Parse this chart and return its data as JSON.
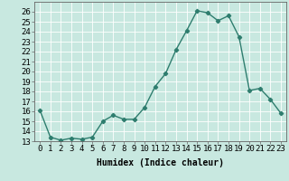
{
  "x": [
    0,
    1,
    2,
    3,
    4,
    5,
    6,
    7,
    8,
    9,
    10,
    11,
    12,
    13,
    14,
    15,
    16,
    17,
    18,
    19,
    20,
    21,
    22,
    23
  ],
  "y": [
    16.1,
    13.4,
    13.1,
    13.3,
    13.2,
    13.4,
    15.0,
    15.6,
    15.2,
    15.2,
    16.4,
    18.5,
    19.8,
    22.2,
    24.1,
    26.1,
    25.9,
    25.1,
    25.6,
    23.5,
    18.1,
    18.3,
    17.2,
    15.8
  ],
  "line_color": "#2e7d6e",
  "marker": "D",
  "marker_size": 2.2,
  "line_width": 1.0,
  "background_color": "#c8e8e0",
  "grid_color": "#ffffff",
  "xlabel": "Humidex (Indice chaleur)",
  "ylabel": "",
  "xlim": [
    -0.5,
    23.5
  ],
  "ylim": [
    13,
    27
  ],
  "yticks": [
    13,
    14,
    15,
    16,
    17,
    18,
    19,
    20,
    21,
    22,
    23,
    24,
    25,
    26
  ],
  "xticks": [
    0,
    1,
    2,
    3,
    4,
    5,
    6,
    7,
    8,
    9,
    10,
    11,
    12,
    13,
    14,
    15,
    16,
    17,
    18,
    19,
    20,
    21,
    22,
    23
  ],
  "xlabel_fontsize": 7,
  "tick_fontsize": 6.5
}
